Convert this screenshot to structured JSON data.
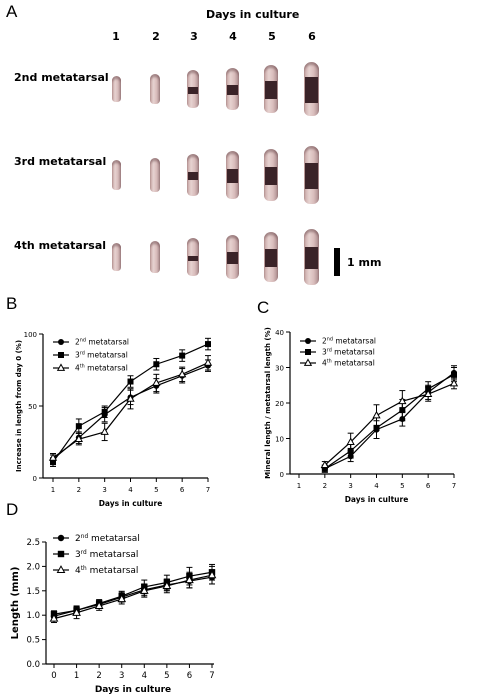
{
  "panel_a": {
    "letter": "A",
    "title": "Days in culture",
    "days": [
      "1",
      "2",
      "3",
      "4",
      "5",
      "6"
    ],
    "rows": [
      "2nd metatarsal",
      "3rd metatarsal",
      "4th metatarsal"
    ],
    "scale_label": "1 mm"
  },
  "panel_b": {
    "letter": "B"
  },
  "panel_c": {
    "letter": "C"
  },
  "panel_d": {
    "letter": "D"
  },
  "chart_data": [
    {
      "type": "line",
      "xlabel": "Days in culture",
      "ylabel": "Increase in length from day 0 (%)",
      "x": [
        1,
        2,
        3,
        4,
        5,
        6,
        7
      ],
      "xticks": [
        1,
        2,
        3,
        4,
        5,
        6,
        7
      ],
      "xlim": [
        1,
        7
      ],
      "ylim": [
        0,
        100
      ],
      "yticks": [
        0,
        50,
        100
      ],
      "grid": false,
      "legend": "top-left",
      "series": [
        {
          "name": "2nd metatarsal",
          "marker": "circle",
          "legend_main": "2",
          "legend_sup": "nd",
          "legend_tail": " metatarsal",
          "values": [
            13,
            28,
            44,
            56,
            64,
            71,
            78
          ],
          "err": [
            3,
            4,
            5,
            5,
            5,
            5,
            4
          ]
        },
        {
          "name": "3rd metatarsal",
          "marker": "square",
          "legend_main": "3",
          "legend_sup": "rd",
          "legend_tail": " metatarsal",
          "values": [
            11,
            36,
            46,
            67,
            79,
            85,
            93
          ],
          "err": [
            3,
            5,
            4,
            4,
            4,
            4,
            4
          ]
        },
        {
          "name": "4th metatarsal",
          "marker": "triangle",
          "legend_main": "4",
          "legend_sup": "th",
          "legend_tail": " metatarsal",
          "values": [
            14,
            27,
            32,
            55,
            66,
            72,
            80
          ],
          "err": [
            3,
            4,
            6,
            7,
            6,
            5,
            5
          ]
        }
      ]
    },
    {
      "type": "line",
      "xlabel": "Days in culture",
      "ylabel": "Mineral length / metatarsal length (%)",
      "x": [
        2,
        3,
        4,
        5,
        6,
        7
      ],
      "xticks": [
        1,
        2,
        3,
        4,
        5,
        6,
        7
      ],
      "xlim": [
        1,
        7
      ],
      "ylim": [
        0,
        40
      ],
      "yticks": [
        0,
        10,
        20,
        30,
        40
      ],
      "grid": false,
      "legend": "top-left",
      "series": [
        {
          "name": "2nd metatarsal",
          "marker": "circle",
          "legend_main": "2",
          "legend_sup": "nd",
          "legend_tail": " metatarsal",
          "values": [
            1.5,
            5,
            12.5,
            15.5,
            23,
            28.5
          ],
          "err": [
            1,
            1.5,
            2.5,
            2,
            2,
            2
          ]
        },
        {
          "name": "3rd metatarsal",
          "marker": "square",
          "legend_main": "3",
          "legend_sup": "rd",
          "legend_tail": " metatarsal",
          "values": [
            1.5,
            6.5,
            13,
            18,
            24,
            28
          ],
          "err": [
            1,
            2,
            3,
            3,
            2,
            2
          ]
        },
        {
          "name": "4th metatarsal",
          "marker": "triangle",
          "legend_main": "4",
          "legend_sup": "th",
          "legend_tail": " metatarsal",
          "values": [
            2.5,
            9,
            16.5,
            20.5,
            22.5,
            25.5
          ],
          "err": [
            1,
            2.5,
            3,
            3,
            2,
            1.5
          ]
        }
      ]
    },
    {
      "type": "line",
      "xlabel": "Days in culture",
      "ylabel": "Length (mm)",
      "x": [
        0,
        1,
        2,
        3,
        4,
        5,
        6,
        7
      ],
      "xticks": [
        0,
        1,
        2,
        3,
        4,
        5,
        6,
        7
      ],
      "xlim": [
        0,
        7
      ],
      "ylim": [
        0.0,
        2.5
      ],
      "yticks": [
        "0.0",
        "0.5",
        "1.0",
        "1.5",
        "2.0",
        "2.5"
      ],
      "grid": false,
      "legend": "top-left",
      "series": [
        {
          "name": "2nd metatarsal",
          "marker": "circle",
          "legend_main": "2",
          "legend_sup": "nd",
          "legend_tail": " metatarsal",
          "values": [
            0.98,
            1.1,
            1.22,
            1.37,
            1.52,
            1.62,
            1.7,
            1.78
          ],
          "err": [
            0.06,
            0.08,
            0.08,
            0.1,
            0.12,
            0.12,
            0.14,
            0.14
          ]
        },
        {
          "name": "3rd metatarsal",
          "marker": "square",
          "legend_main": "3",
          "legend_sup": "rd",
          "legend_tail": " metatarsal",
          "values": [
            1.02,
            1.1,
            1.24,
            1.39,
            1.58,
            1.67,
            1.8,
            1.88
          ],
          "err": [
            0.07,
            0.09,
            0.08,
            0.1,
            0.14,
            0.15,
            0.18,
            0.16
          ]
        },
        {
          "name": "4th metatarsal",
          "marker": "triangle",
          "legend_main": "4",
          "legend_sup": "th",
          "legend_tail": " metatarsal",
          "values": [
            0.93,
            1.05,
            1.19,
            1.33,
            1.5,
            1.6,
            1.72,
            1.82
          ],
          "err": [
            0.08,
            0.12,
            0.09,
            0.1,
            0.13,
            0.14,
            0.16,
            0.18
          ]
        }
      ]
    }
  ]
}
